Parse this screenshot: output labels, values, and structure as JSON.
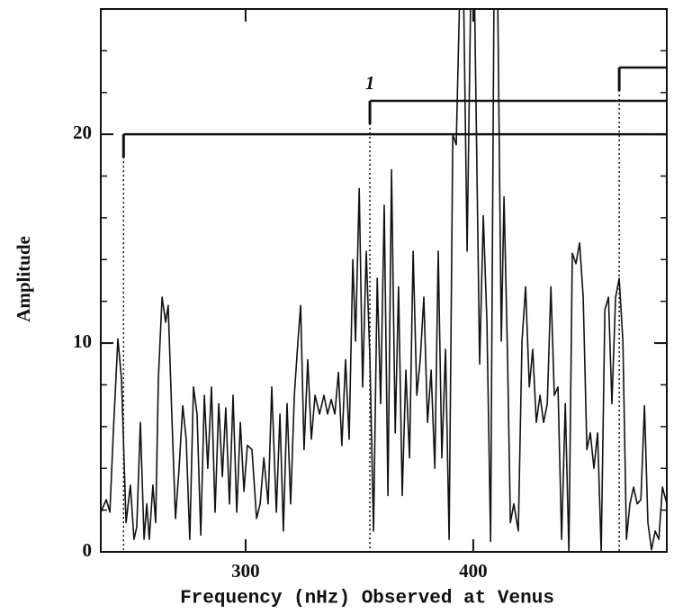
{
  "chart_data": {
    "type": "line",
    "xlabel": "Frequency (nHz) Observed at Venus",
    "ylabel": "Amplitude",
    "xlim": [
      236.4,
      485.0
    ],
    "ylim": [
      0,
      26
    ],
    "xticks": [
      300,
      400
    ],
    "yticks": [
      0,
      10,
      20
    ],
    "minor_yticks": [
      2,
      4,
      6,
      8,
      12,
      14,
      16,
      18,
      22,
      24
    ],
    "annotations": [
      {
        "x": 246.4,
        "level": 20
      },
      {
        "x": 354.6,
        "level": 21.6,
        "label": "1"
      },
      {
        "x": 464.1,
        "level": 23.2
      }
    ],
    "series": [
      {
        "color": "#111111",
        "x": [
          236.4,
          238.8,
          240.4,
          241.9,
          243.9,
          245.5,
          247.5,
          249.4,
          251.0,
          252.2,
          253.8,
          255.4,
          256.6,
          257.7,
          259.3,
          260.5,
          261.7,
          263.3,
          264.9,
          266.0,
          267.6,
          269.2,
          270.8,
          272.4,
          273.9,
          275.5,
          277.1,
          278.7,
          280.3,
          281.9,
          283.4,
          285.0,
          286.6,
          288.2,
          289.8,
          291.3,
          292.9,
          294.5,
          296.1,
          297.7,
          299.3,
          300.8,
          302.8,
          304.8,
          306.4,
          308.0,
          309.9,
          311.5,
          313.5,
          315.1,
          316.6,
          318.2,
          319.8,
          321.4,
          323.0,
          324.2,
          325.7,
          327.3,
          328.9,
          330.5,
          332.5,
          334.4,
          336.0,
          337.6,
          339.2,
          340.8,
          342.3,
          343.9,
          345.5,
          347.1,
          348.3,
          349.9,
          351.4,
          353.0,
          354.6,
          356.2,
          357.8,
          359.3,
          360.9,
          362.5,
          364.1,
          365.7,
          367.2,
          368.8,
          370.4,
          372.0,
          373.6,
          375.2,
          376.7,
          378.3,
          379.9,
          381.5,
          383.1,
          384.6,
          386.2,
          387.8,
          389.4,
          391.0,
          392.5,
          394.1,
          395.7,
          397.3,
          398.9,
          400.5,
          402.8,
          404.4,
          406.0,
          407.6,
          409.1,
          410.7,
          412.3,
          413.5,
          415.1,
          416.3,
          417.8,
          419.8,
          421.4,
          423.0,
          424.6,
          426.1,
          427.7,
          429.3,
          430.9,
          432.5,
          434.1,
          435.6,
          437.2,
          438.8,
          440.4,
          442.0,
          443.5,
          445.1,
          446.7,
          448.3,
          449.9,
          451.4,
          453.0,
          454.6,
          456.2,
          457.8,
          459.4,
          460.9,
          462.5,
          464.1,
          465.7,
          467.3,
          468.8,
          470.4,
          472.0,
          473.6,
          475.2,
          476.7,
          478.3,
          479.9,
          481.5,
          483.1,
          485.0
        ],
        "values": [
          1.9,
          2.5,
          1.9,
          5.7,
          10.2,
          8.3,
          1.4,
          3.2,
          0.6,
          1.2,
          6.2,
          0.6,
          2.3,
          0.6,
          3.2,
          1.4,
          8.3,
          12.2,
          11.0,
          11.8,
          6.6,
          1.6,
          4.0,
          7.0,
          5.4,
          0.6,
          7.9,
          6.6,
          0.8,
          7.5,
          4.0,
          7.9,
          1.9,
          7.1,
          3.6,
          6.9,
          2.3,
          7.5,
          1.9,
          6.2,
          2.9,
          5.1,
          4.9,
          1.6,
          2.3,
          4.5,
          2.3,
          7.9,
          1.9,
          6.6,
          1.0,
          7.1,
          2.3,
          7.5,
          10.1,
          11.8,
          4.9,
          9.2,
          5.4,
          7.5,
          6.6,
          7.5,
          6.6,
          7.3,
          6.6,
          8.6,
          5.1,
          9.2,
          5.4,
          14.0,
          10.1,
          17.4,
          7.9,
          14.4,
          9.2,
          1.0,
          13.1,
          7.1,
          16.6,
          2.7,
          18.3,
          5.7,
          12.7,
          2.7,
          8.7,
          4.5,
          14.4,
          7.5,
          9.2,
          12.2,
          6.2,
          8.7,
          4.0,
          14.4,
          4.5,
          9.7,
          0.6,
          20.0,
          19.5,
          27,
          27,
          14.4,
          27,
          27,
          9.0,
          16.1,
          11.0,
          0.5,
          27,
          27,
          10.1,
          17.0,
          9.2,
          1.4,
          2.3,
          1.0,
          10.1,
          12.7,
          7.9,
          9.7,
          6.2,
          7.5,
          6.2,
          7.1,
          12.7,
          7.5,
          7.9,
          0.6,
          7.1,
          0,
          14.3,
          13.8,
          14.8,
          12.2,
          4.9,
          5.7,
          4.0,
          5.7,
          0,
          11.6,
          12.2,
          7.1,
          12.2,
          13.1,
          10.1,
          0.6,
          2.3,
          3.1,
          2.3,
          2.5,
          7.0,
          1.4,
          0.1,
          1.0,
          0.6,
          3.1,
          2.3
        ]
      }
    ]
  }
}
